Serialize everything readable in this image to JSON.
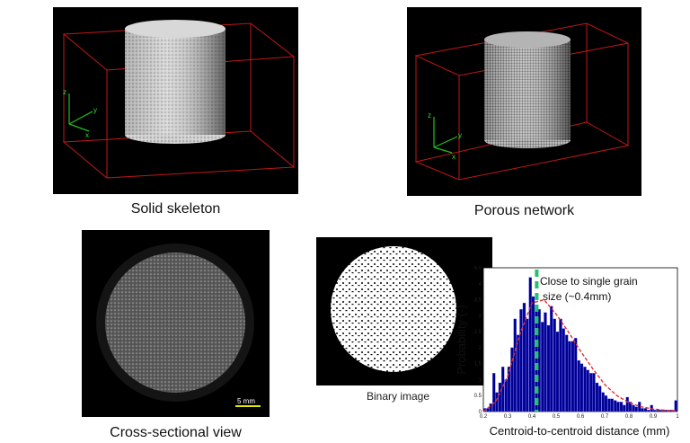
{
  "figure": {
    "panels": {
      "solid_skeleton": {
        "caption": "Solid skeleton",
        "axis_labels": {
          "z": "z",
          "y": "y",
          "x": "x"
        }
      },
      "porous_network": {
        "caption": "Porous network",
        "axis_labels": {
          "z": "z",
          "y": "y",
          "x": "x"
        }
      },
      "cross_section": {
        "caption": "Cross-sectional view",
        "scalebar": "5 mm"
      },
      "binary_image": {
        "caption": "Binary image"
      }
    },
    "histogram": {
      "annotation_line1": "Close to single grain",
      "annotation_line2": "size (~0.4mm)"
    }
  },
  "chart_data": {
    "type": "bar",
    "xlabel": "Centroid-to-centroid distance (mm)",
    "ylabel": "Probability (-)",
    "xlim": [
      0.2,
      1.0
    ],
    "ylim": [
      0,
      4.5
    ],
    "xticks": [
      "0.2",
      "0.3",
      "0.4",
      "0.5",
      "0.6",
      "0.7",
      "0.8",
      "0.9",
      "1"
    ],
    "yticks": [
      "0",
      "0.5",
      "1",
      "1.5",
      "2",
      "2.5",
      "3",
      "3.5",
      "4",
      "4.5"
    ],
    "bar_width": 0.0125,
    "x": [
      0.206,
      0.219,
      0.231,
      0.244,
      0.256,
      0.269,
      0.281,
      0.294,
      0.306,
      0.319,
      0.331,
      0.344,
      0.356,
      0.369,
      0.381,
      0.394,
      0.406,
      0.419,
      0.431,
      0.444,
      0.456,
      0.469,
      0.481,
      0.494,
      0.506,
      0.519,
      0.531,
      0.544,
      0.556,
      0.569,
      0.581,
      0.594,
      0.606,
      0.619,
      0.631,
      0.644,
      0.656,
      0.669,
      0.681,
      0.694,
      0.706,
      0.719,
      0.731,
      0.744,
      0.756,
      0.769,
      0.781,
      0.794,
      0.806,
      0.819,
      0.831,
      0.844,
      0.856,
      0.869,
      0.881,
      0.894,
      0.906,
      0.919,
      0.931,
      0.944,
      0.956,
      0.969,
      0.981,
      0.994
    ],
    "values": [
      0.1,
      0.1,
      0.25,
      1.2,
      0.6,
      0.9,
      1.4,
      1.0,
      1.4,
      2.0,
      2.9,
      2.4,
      3.2,
      3.4,
      2.9,
      4.2,
      3.6,
      3.3,
      3.2,
      2.8,
      3.1,
      2.7,
      3.3,
      2.9,
      2.5,
      2.9,
      2.6,
      2.4,
      2.2,
      2.2,
      2.3,
      1.6,
      1.5,
      1.4,
      1.3,
      1.2,
      1.2,
      0.9,
      0.8,
      0.6,
      0.5,
      0.4,
      0.4,
      0.35,
      0.3,
      0.3,
      0.2,
      0.45,
      0.3,
      0.2,
      0.15,
      0.3,
      0.1,
      0.1,
      0.05,
      0.2,
      0.05,
      0.05,
      0.05,
      0.05,
      0.05,
      0.05,
      0.05,
      0.35
    ],
    "fit_curve": {
      "x": [
        0.2,
        0.25,
        0.3,
        0.35,
        0.4,
        0.45,
        0.5,
        0.55,
        0.6,
        0.65,
        0.7,
        0.75,
        0.8,
        0.85,
        0.9,
        0.95,
        1.0
      ],
      "y": [
        0.0,
        0.3,
        1.1,
        2.4,
        3.4,
        3.5,
        3.05,
        2.5,
        1.9,
        1.35,
        0.85,
        0.5,
        0.28,
        0.15,
        0.08,
        0.04,
        0.02
      ]
    },
    "marker_x": 0.42,
    "colors": {
      "bars": "#000090",
      "bar_edge": "#6c6cff",
      "fit": "#e03030",
      "marker": "#22c070"
    }
  }
}
